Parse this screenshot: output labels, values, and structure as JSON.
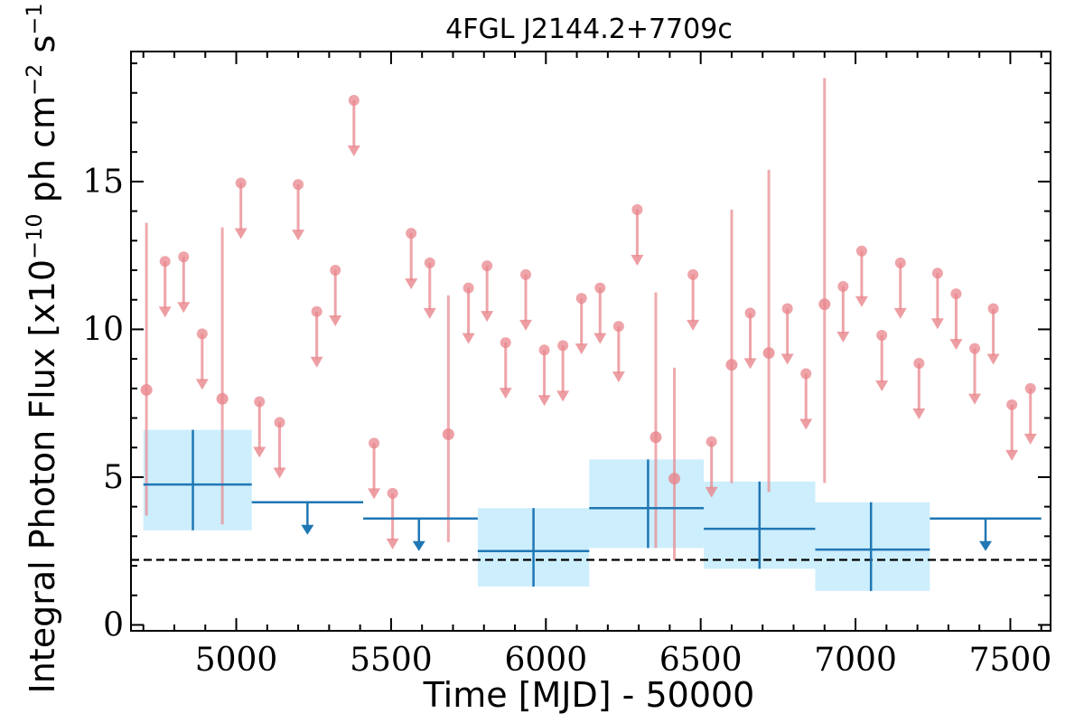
{
  "chart_data": {
    "type": "scatter",
    "title": "4FGL J2144.2+7709c",
    "xlabel": "Time [MJD] - 50000",
    "ylabel": "Integral Photon Flux [x10",
    "ylabel_exp": "−10",
    "ylabel_mid": " ph cm",
    "ylabel_exp2": "−2",
    "ylabel_mid2": " s",
    "ylabel_exp3": "−1",
    "ylabel_end": "]",
    "xlim": [
      4660,
      7630
    ],
    "ylim": [
      -0.2,
      19.4
    ],
    "x_ticks": [
      5000,
      5500,
      6000,
      6500,
      7000,
      7500
    ],
    "x_tick_labels": [
      "5000",
      "5500",
      "6000",
      "6500",
      "7000",
      "7500"
    ],
    "x_minor_step": 100,
    "y_ticks": [
      0,
      5,
      10,
      15
    ],
    "y_tick_labels": [
      "0",
      "5",
      "10",
      "15"
    ],
    "y_minor_step": 1,
    "reference_line": {
      "y": 2.2,
      "style": "dashed",
      "color": "#000000"
    },
    "colors": {
      "short_bin": "#e8868c",
      "long_bin_line": "#1f77b4",
      "long_bin_box": "#cdeefc"
    },
    "long_bins": {
      "detections": [
        {
          "x0": 4700,
          "x1": 5050,
          "xc": 4860,
          "y": 4.75,
          "ylo": 3.2,
          "yhi": 6.6
        },
        {
          "x0": 5780,
          "x1": 6140,
          "xc": 5960,
          "y": 2.5,
          "ylo": 1.3,
          "yhi": 3.95
        },
        {
          "x0": 6140,
          "x1": 6510,
          "xc": 6330,
          "y": 3.95,
          "ylo": 2.6,
          "yhi": 5.6
        },
        {
          "x0": 6510,
          "x1": 6870,
          "xc": 6690,
          "y": 3.25,
          "ylo": 1.9,
          "yhi": 4.85
        },
        {
          "x0": 6870,
          "x1": 7240,
          "xc": 7050,
          "y": 2.55,
          "ylo": 1.15,
          "yhi": 4.15
        }
      ],
      "upper_limits": [
        {
          "x0": 5050,
          "x1": 5410,
          "xc": 5230,
          "y": 4.15
        },
        {
          "x0": 5410,
          "x1": 5780,
          "xc": 5590,
          "y": 3.6
        },
        {
          "x0": 7240,
          "x1": 7600,
          "xc": 7420,
          "y": 3.6
        }
      ]
    },
    "short_bins": {
      "detections": [
        {
          "x": 4710,
          "y": 7.95,
          "ylo": 3.7,
          "yhi": 13.6
        },
        {
          "x": 4955,
          "y": 7.65,
          "ylo": 3.4,
          "yhi": 13.45
        },
        {
          "x": 5685,
          "y": 6.45,
          "ylo": 2.8,
          "yhi": 11.15
        },
        {
          "x": 6355,
          "y": 6.35,
          "ylo": 2.6,
          "yhi": 11.25
        },
        {
          "x": 6415,
          "y": 4.95,
          "ylo": 2.2,
          "yhi": 8.7
        },
        {
          "x": 6600,
          "y": 8.8,
          "ylo": 4.8,
          "yhi": 14.05
        },
        {
          "x": 6720,
          "y": 9.2,
          "ylo": 4.5,
          "yhi": 15.4
        },
        {
          "x": 6900,
          "y": 10.85,
          "ylo": 4.8,
          "yhi": 18.5
        }
      ],
      "upper_limits": [
        {
          "x": 4770,
          "y": 12.3
        },
        {
          "x": 4830,
          "y": 12.45
        },
        {
          "x": 4890,
          "y": 9.85
        },
        {
          "x": 5015,
          "y": 14.95
        },
        {
          "x": 5075,
          "y": 7.55
        },
        {
          "x": 5140,
          "y": 6.85
        },
        {
          "x": 5200,
          "y": 14.9
        },
        {
          "x": 5260,
          "y": 10.6
        },
        {
          "x": 5320,
          "y": 12.0
        },
        {
          "x": 5380,
          "y": 17.75
        },
        {
          "x": 5445,
          "y": 6.15
        },
        {
          "x": 5505,
          "y": 4.45
        },
        {
          "x": 5565,
          "y": 13.25
        },
        {
          "x": 5625,
          "y": 12.25
        },
        {
          "x": 5750,
          "y": 11.4
        },
        {
          "x": 5810,
          "y": 12.15
        },
        {
          "x": 5870,
          "y": 9.55
        },
        {
          "x": 5935,
          "y": 11.85
        },
        {
          "x": 5995,
          "y": 9.3
        },
        {
          "x": 6055,
          "y": 9.45
        },
        {
          "x": 6115,
          "y": 11.05
        },
        {
          "x": 6175,
          "y": 11.4
        },
        {
          "x": 6235,
          "y": 10.1
        },
        {
          "x": 6295,
          "y": 14.05
        },
        {
          "x": 6475,
          "y": 11.85
        },
        {
          "x": 6535,
          "y": 6.2
        },
        {
          "x": 6660,
          "y": 10.55
        },
        {
          "x": 6780,
          "y": 10.7
        },
        {
          "x": 6840,
          "y": 8.5
        },
        {
          "x": 6960,
          "y": 11.45
        },
        {
          "x": 7020,
          "y": 12.65
        },
        {
          "x": 7085,
          "y": 9.8
        },
        {
          "x": 7145,
          "y": 12.25
        },
        {
          "x": 7205,
          "y": 8.85
        },
        {
          "x": 7265,
          "y": 11.9
        },
        {
          "x": 7325,
          "y": 11.2
        },
        {
          "x": 7385,
          "y": 9.35
        },
        {
          "x": 7445,
          "y": 10.7
        },
        {
          "x": 7505,
          "y": 7.45
        },
        {
          "x": 7565,
          "y": 8.0
        }
      ]
    }
  }
}
